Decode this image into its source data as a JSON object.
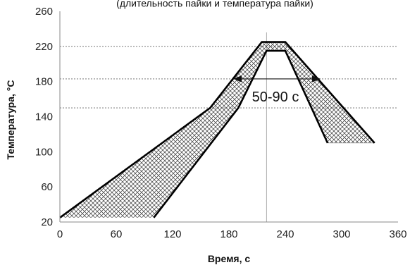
{
  "chart_data": {
    "type": "area",
    "title_fragment": "(длительность пайки и температура пайки)",
    "xlabel": "Время, с",
    "ylabel": "Температура, °C",
    "xlim": [
      0,
      360
    ],
    "ylim": [
      20,
      260
    ],
    "xticks": [
      0,
      60,
      120,
      180,
      240,
      300,
      360
    ],
    "yticks": [
      20,
      60,
      100,
      140,
      180,
      220,
      260
    ],
    "reference_lines": {
      "horizontal_dashed": [
        150,
        183,
        220
      ],
      "vertical": [
        220
      ]
    },
    "series": [
      {
        "points": [
          [
            0,
            25
          ],
          [
            160,
            150
          ],
          [
            215,
            225
          ],
          [
            240,
            225
          ],
          [
            335,
            110
          ]
        ]
      },
      {
        "points": [
          [
            100,
            25
          ],
          [
            190,
            150
          ],
          [
            220,
            215
          ],
          [
            240,
            215
          ],
          [
            285,
            110
          ]
        ]
      }
    ],
    "hatched_region": {
      "outer": [
        [
          0,
          25
        ],
        [
          160,
          150
        ],
        [
          215,
          225
        ],
        [
          240,
          225
        ],
        [
          335,
          110
        ]
      ],
      "inner_reversed": [
        [
          285,
          110
        ],
        [
          240,
          215
        ],
        [
          220,
          215
        ],
        [
          190,
          150
        ],
        [
          100,
          25
        ]
      ]
    },
    "annotation": {
      "text": "50-90 с",
      "arrow_from": [
        190,
        183
      ],
      "arrow_to": [
        272,
        183
      ]
    }
  }
}
